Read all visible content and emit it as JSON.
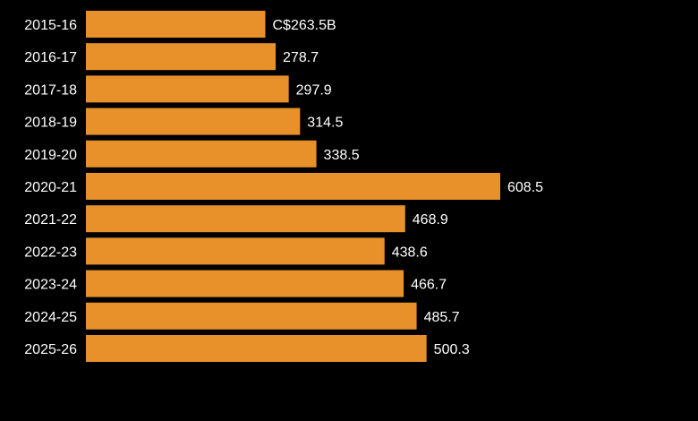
{
  "chart_data": {
    "type": "bar",
    "orientation": "horizontal",
    "title": "",
    "xlabel": "",
    "ylabel": "",
    "categories": [
      "2015-16",
      "2016-17",
      "2017-18",
      "2018-19",
      "2019-20",
      "2020-21",
      "2021-22",
      "2022-23",
      "2023-24",
      "2024-25",
      "2025-26"
    ],
    "values": [
      263.5,
      278.7,
      297.9,
      314.5,
      338.5,
      608.5,
      468.9,
      438.6,
      466.7,
      485.7,
      500.3
    ],
    "value_labels": [
      "C$263.5B",
      "278.7",
      "297.9",
      "314.5",
      "338.5",
      "608.5",
      "468.9",
      "438.6",
      "466.7",
      "485.7",
      "500.3"
    ],
    "xlim": [
      0,
      608.5
    ],
    "grid": false,
    "legend": "none",
    "colors": {
      "bar": "#E8912B",
      "background": "#000000",
      "text": "#FFFFFF"
    }
  }
}
